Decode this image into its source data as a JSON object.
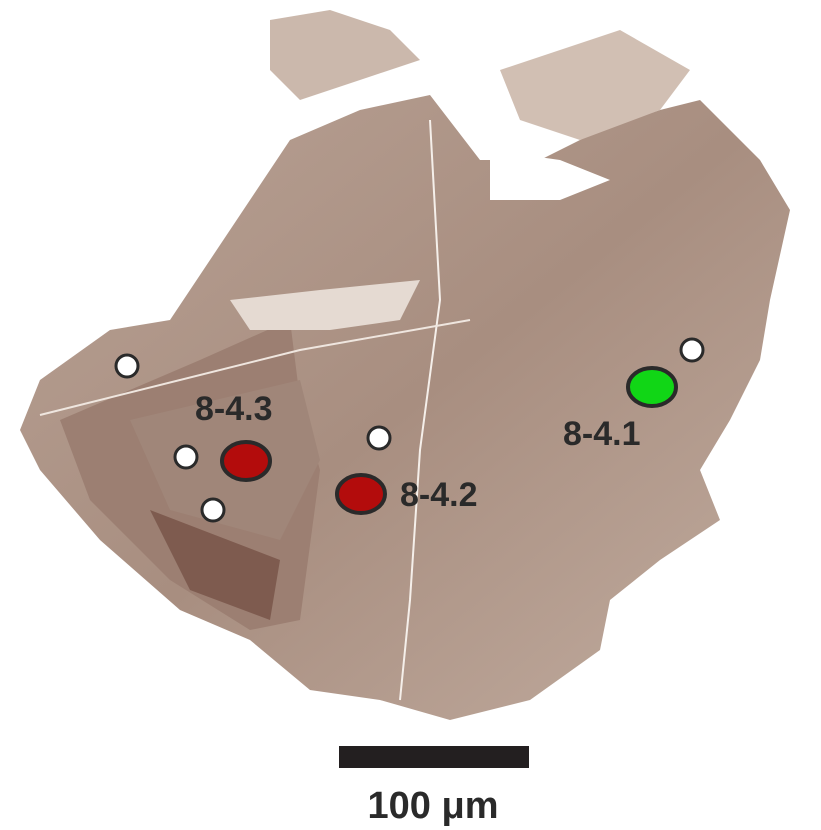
{
  "spots": [
    {
      "label": "8-4.3"
    },
    {
      "label": "8-4.2"
    },
    {
      "label": "8-4.1"
    }
  ],
  "scale_bar": {
    "label": "100 μm"
  }
}
